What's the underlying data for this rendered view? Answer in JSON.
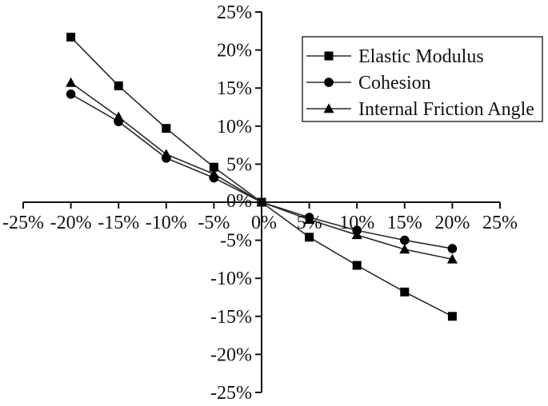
{
  "chart_data": {
    "type": "line",
    "title": "",
    "xlabel": "",
    "ylabel": "",
    "x": [
      -20,
      -15,
      -10,
      -5,
      0,
      5,
      10,
      15,
      20
    ],
    "series": [
      {
        "name": "Elastic Modulus",
        "marker": "square",
        "values": [
          21.7,
          15.3,
          9.7,
          4.6,
          0,
          -4.6,
          -8.3,
          -11.8,
          -15.0
        ]
      },
      {
        "name": "Cohesion",
        "marker": "circle",
        "values": [
          14.2,
          10.6,
          5.8,
          3.2,
          0,
          -2.0,
          -3.7,
          -5.0,
          -6.1
        ]
      },
      {
        "name": "Internal Friction Angle",
        "marker": "triangle",
        "values": [
          15.7,
          11.2,
          6.3,
          3.7,
          0,
          -2.3,
          -4.3,
          -6.2,
          -7.5
        ]
      }
    ],
    "xlim": [
      -25,
      25
    ],
    "ylim": [
      -25,
      25
    ],
    "x_ticks": [
      -25,
      -20,
      -15,
      -10,
      -5,
      0,
      5,
      10,
      15,
      20,
      25
    ],
    "y_ticks": [
      -25,
      -20,
      -15,
      -10,
      -5,
      0,
      5,
      10,
      15,
      20,
      25
    ],
    "tick_label_suffix": "%",
    "x_tick_labels": [
      "-25%",
      "-20%",
      "-15%",
      "-10%",
      "-5%",
      "0%",
      "5%",
      "10%",
      "15%",
      "20%",
      "25%"
    ],
    "y_tick_labels": [
      "-25%",
      "-20%",
      "-15%",
      "-10%",
      "-5%",
      "0%",
      "5%",
      "10%",
      "15%",
      "20%",
      "25%"
    ],
    "grid": false,
    "legend": {
      "position": "upper-right",
      "entries": [
        "Elastic Modulus",
        "Cohesion",
        "Internal Friction Angle"
      ]
    },
    "colors": {
      "axis": "#111111",
      "line": "#2a2a2a",
      "marker": "#000000",
      "text": "#111111",
      "legend_border": "#333333",
      "background": "#ffffff"
    }
  }
}
